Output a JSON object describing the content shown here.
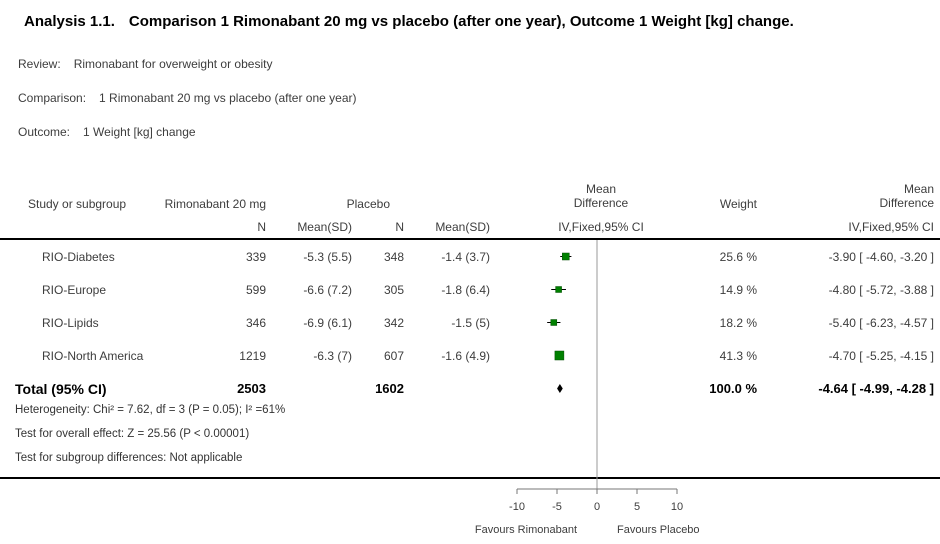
{
  "title": {
    "analysis_label": "Analysis 1.1.",
    "rest": "Comparison 1 Rimonabant 20 mg vs placebo (after one year), Outcome 1 Weight [kg] change."
  },
  "meta": {
    "review_label": "Review:",
    "review": "Rimonabant for overweight or obesity",
    "comparison_label": "Comparison:",
    "comparison": "1 Rimonabant 20 mg vs placebo (after one year)",
    "outcome_label": "Outcome:",
    "outcome": "1 Weight [kg] change"
  },
  "table": {
    "headers": {
      "study": "Study or subgroup",
      "treatment_group": "Rimonabant 20 mg",
      "placebo_group": "Placebo",
      "mean_difference_line1": "Mean",
      "mean_difference_line2": "Difference",
      "weight": "Weight",
      "n": "N",
      "mean_sd": "Mean(SD)",
      "ci_method": "IV,Fixed,95% CI"
    },
    "rows": [
      {
        "study": "RIO-Diabetes",
        "t_n": "339",
        "t_mean_sd": "-5.3 (5.5)",
        "p_n": "348",
        "p_mean_sd": "-1.4 (3.7)",
        "weight": "25.6 %",
        "md_text": "-3.90 [ -4.60, -3.20 ]"
      },
      {
        "study": "RIO-Europe",
        "t_n": "599",
        "t_mean_sd": "-6.6 (7.2)",
        "p_n": "305",
        "p_mean_sd": "-1.8 (6.4)",
        "weight": "14.9 %",
        "md_text": "-4.80 [ -5.72, -3.88 ]"
      },
      {
        "study": "RIO-Lipids",
        "t_n": "346",
        "t_mean_sd": "-6.9 (6.1)",
        "p_n": "342",
        "p_mean_sd": "-1.5 (5)",
        "weight": "18.2 %",
        "md_text": "-5.40 [ -6.23, -4.57 ]"
      },
      {
        "study": "RIO-North America",
        "t_n": "1219",
        "t_mean_sd": "-6.3 (7)",
        "p_n": "607",
        "p_mean_sd": "-1.6 (4.9)",
        "weight": "41.3 %",
        "md_text": "-4.70 [ -5.25, -4.15 ]"
      }
    ],
    "total": {
      "study": "Total (95% CI)",
      "t_n": "2503",
      "p_n": "1602",
      "weight": "100.0 %",
      "md_text": "-4.64 [ -4.99, -4.28 ]"
    },
    "footnotes": [
      "Heterogeneity: Chi² = 7.62, df = 3 (P = 0.05); I² =61%",
      "Test for overall effect: Z = 25.56 (P < 0.00001)",
      "Test for subgroup differences: Not applicable"
    ]
  },
  "chart_data": {
    "type": "forest",
    "x_ticks": [
      -10,
      -5,
      0,
      5,
      10
    ],
    "axis_range": [
      -10,
      10
    ],
    "favours_left": "Favours Rimonabant",
    "favours_right": "Favours Placebo",
    "effect_measure": "Mean Difference IV,Fixed,95% CI",
    "studies": [
      {
        "name": "RIO-Diabetes",
        "md": -3.9,
        "ci_low": -4.6,
        "ci_high": -3.2,
        "weight_pct": 25.6
      },
      {
        "name": "RIO-Europe",
        "md": -4.8,
        "ci_low": -5.72,
        "ci_high": -3.88,
        "weight_pct": 14.9
      },
      {
        "name": "RIO-Lipids",
        "md": -5.4,
        "ci_low": -6.23,
        "ci_high": -4.57,
        "weight_pct": 18.2
      },
      {
        "name": "RIO-North America",
        "md": -4.7,
        "ci_low": -5.25,
        "ci_high": -4.15,
        "weight_pct": 41.3
      }
    ],
    "total": {
      "md": -4.64,
      "ci_low": -4.99,
      "ci_high": -4.28
    },
    "marker_color": "#008000",
    "marker_stroke_color": "#044d04",
    "ci_line_color": "#000000",
    "diamond_color": "#000000",
    "zero_line_color": "#9a9a9a",
    "axis_color": "#777777"
  }
}
